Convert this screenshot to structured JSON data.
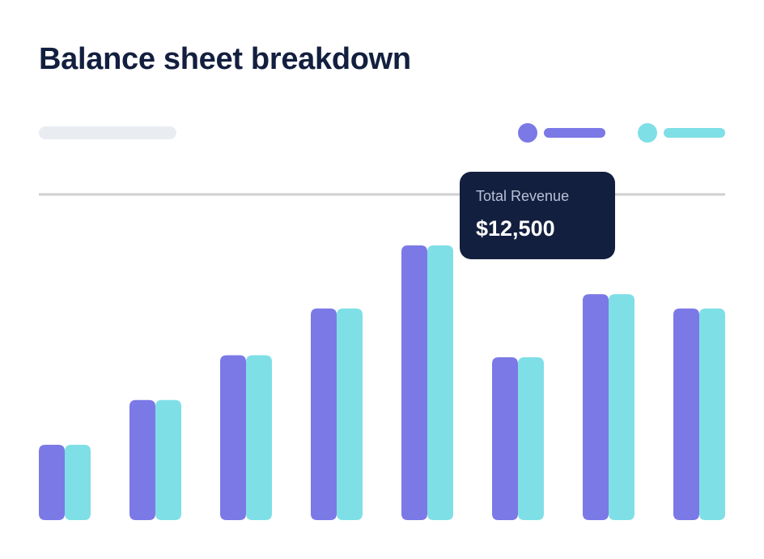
{
  "title": "Balance sheet breakdown",
  "colors": {
    "series_a": "#7b79e6",
    "series_b": "#7fdfe6",
    "title": "#131f3f",
    "placeholder": "#e9edf2",
    "reference_line": "#cfcfcf",
    "tooltip_bg": "#131f3f"
  },
  "tooltip": {
    "label": "Total Revenue",
    "value": "$12,500"
  },
  "chart_data": {
    "type": "bar",
    "categories": [
      "",
      "",
      "",
      "",
      "",
      "",
      "",
      ""
    ],
    "series": [
      {
        "values": [
          3.7,
          5.9,
          8.1,
          10.4,
          13.5,
          8.0,
          11.1,
          10.4
        ]
      },
      {
        "values": [
          3.7,
          5.9,
          8.1,
          10.4,
          13.5,
          8.0,
          11.1,
          10.4
        ]
      }
    ],
    "reference_line": 16,
    "ylim": [
      0,
      16
    ],
    "grid": false,
    "legend": "top-right"
  }
}
